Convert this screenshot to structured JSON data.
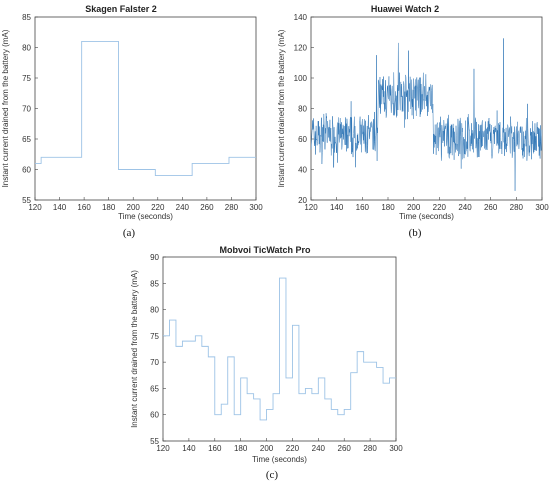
{
  "chart_data": [
    {
      "type": "line",
      "panel_label": "(a)",
      "title": "Skagen Falster 2",
      "xlabel": "Time (seconds)",
      "ylabel": "Instant current drained from the battery (mA)",
      "xlim": [
        120,
        300
      ],
      "ylim": [
        55,
        85
      ],
      "xticks": [
        "120",
        "140",
        "160",
        "180",
        "200",
        "220",
        "240",
        "260",
        "280",
        "300"
      ],
      "yticks": [
        "55",
        "60",
        "65",
        "70",
        "75",
        "80",
        "85"
      ],
      "step": true,
      "series": [
        {
          "color": "#9dc3e6",
          "x": [
            120,
            125,
            158,
            188,
            218,
            248,
            278,
            300
          ],
          "y": [
            61,
            62,
            81,
            60,
            59,
            61,
            62,
            62
          ]
        }
      ]
    },
    {
      "type": "line",
      "panel_label": "(b)",
      "title": "Huawei Watch 2",
      "xlabel": "Time (seconds)",
      "ylabel": "Instant current drained from the battery (mA)",
      "xlim": [
        120,
        300
      ],
      "ylim": [
        20,
        140
      ],
      "xticks": [
        "120",
        "140",
        "160",
        "180",
        "200",
        "220",
        "240",
        "260",
        "280",
        "300"
      ],
      "yticks": [
        "20",
        "40",
        "60",
        "80",
        "100",
        "120",
        "140"
      ],
      "series": [
        {
          "color": "#2e75b6",
          "segments": [
            {
              "x_start": 120,
              "x_end": 172,
              "mean": 62,
              "spread": 12
            },
            {
              "x_start": 172,
              "x_end": 215,
              "mean": 88,
              "spread": 12
            },
            {
              "x_start": 215,
              "x_end": 300,
              "mean": 60,
              "spread": 12
            }
          ],
          "peaks": [
            {
              "x": 171,
              "y": 115
            },
            {
              "x": 188,
              "y": 123
            },
            {
              "x": 196,
              "y": 118
            },
            {
              "x": 270,
              "y": 126
            },
            {
              "x": 247,
              "y": 106
            },
            {
              "x": 279,
              "y": 26
            }
          ]
        }
      ]
    },
    {
      "type": "line",
      "panel_label": "(c)",
      "title": "Mobvoi TicWatch Pro",
      "xlabel": "Time (seconds)",
      "ylabel": "Instant current drained from the battery (mA)",
      "xlim": [
        120,
        300
      ],
      "ylim": [
        55,
        90
      ],
      "xticks": [
        "120",
        "140",
        "160",
        "180",
        "200",
        "220",
        "240",
        "260",
        "280",
        "300"
      ],
      "yticks": [
        "55",
        "60",
        "65",
        "70",
        "75",
        "80",
        "85",
        "90"
      ],
      "step": true,
      "series": [
        {
          "color": "#9dc3e6",
          "x": [
            120,
            125,
            130,
            135,
            140,
            145,
            150,
            155,
            160,
            165,
            170,
            175,
            180,
            185,
            190,
            195,
            200,
            205,
            210,
            215,
            220,
            225,
            230,
            235,
            240,
            245,
            250,
            255,
            260,
            265,
            270,
            275,
            280,
            285,
            290,
            295,
            300
          ],
          "y": [
            75,
            78,
            73,
            74,
            74,
            75,
            73,
            71,
            60,
            62,
            71,
            60,
            67,
            64,
            63,
            59,
            61,
            64,
            86,
            67,
            77,
            64,
            65,
            64,
            67,
            63,
            61,
            60,
            61,
            68,
            72,
            70,
            70,
            69,
            66,
            67,
            67
          ]
        }
      ]
    }
  ]
}
